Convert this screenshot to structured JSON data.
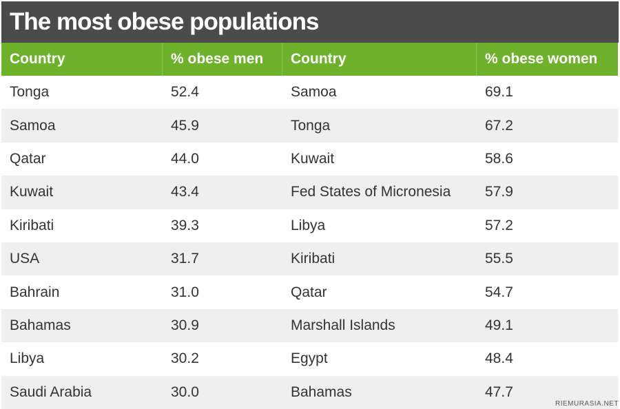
{
  "header": {
    "title": "The most obese populations"
  },
  "table": {
    "columns": [
      "Country",
      "% obese men",
      "Country",
      "% obese women"
    ],
    "rows": [
      [
        "Tonga",
        "52.4",
        "Samoa",
        "69.1"
      ],
      [
        "Samoa",
        "45.9",
        "Tonga",
        "67.2"
      ],
      [
        "Qatar",
        "44.0",
        "Kuwait",
        "58.6"
      ],
      [
        "Kuwait",
        "43.4",
        "Fed States of Micronesia",
        "57.9"
      ],
      [
        "Kiribati",
        "39.3",
        "Libya",
        "57.2"
      ],
      [
        "USA",
        "31.7",
        "Kiribati",
        "55.5"
      ],
      [
        "Bahrain",
        "31.0",
        "Qatar",
        "54.7"
      ],
      [
        "Bahamas",
        "30.9",
        "Marshall Islands",
        "49.1"
      ],
      [
        "Libya",
        "30.2",
        "Egypt",
        "48.4"
      ],
      [
        "Saudi Arabia",
        "30.0",
        "Bahamas",
        "47.7"
      ]
    ]
  },
  "watermark": "RIEMURASIA.NET"
}
